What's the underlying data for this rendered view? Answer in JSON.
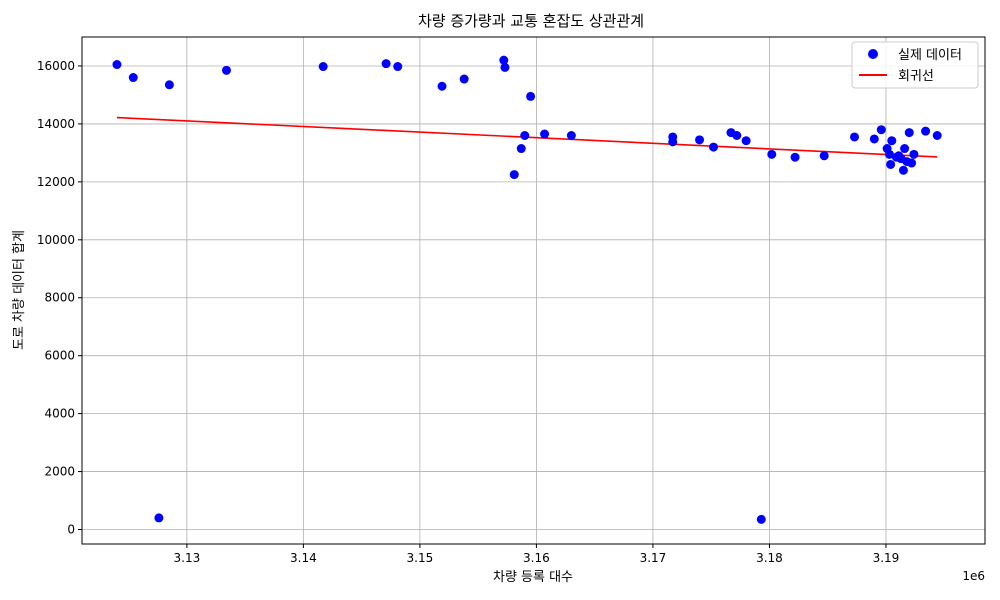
{
  "chart_data": {
    "type": "scatter",
    "title": "차량 증가량과 교통 혼잡도 상관관계",
    "xlabel": "차량 등록 대수",
    "ylabel": "도로 차량 데이터 합계",
    "x_offset_label": "1e6",
    "xlim": [
      3.121,
      3.1985
    ],
    "ylim": [
      -500,
      17000
    ],
    "x_ticks": [
      3.13,
      3.14,
      3.15,
      3.16,
      3.17,
      3.18,
      3.19
    ],
    "x_tick_labels": [
      "3.13",
      "3.14",
      "3.15",
      "3.16",
      "3.17",
      "3.18",
      "3.19"
    ],
    "y_ticks": [
      0,
      2000,
      4000,
      6000,
      8000,
      10000,
      12000,
      14000,
      16000
    ],
    "y_tick_labels": [
      "0",
      "2000",
      "4000",
      "6000",
      "8000",
      "10000",
      "12000",
      "14000",
      "16000"
    ],
    "grid": true,
    "legend_position": "top-right",
    "series": [
      {
        "name": "실제 데이터",
        "kind": "scatter",
        "color": "#0000ff",
        "points": [
          [
            3.124,
            16050
          ],
          [
            3.1254,
            15600
          ],
          [
            3.1276,
            400
          ],
          [
            3.1285,
            15350
          ],
          [
            3.1334,
            15850
          ],
          [
            3.1417,
            15980
          ],
          [
            3.1471,
            16080
          ],
          [
            3.1481,
            15980
          ],
          [
            3.1519,
            15300
          ],
          [
            3.1538,
            15550
          ],
          [
            3.1572,
            16200
          ],
          [
            3.1573,
            15950
          ],
          [
            3.1581,
            12250
          ],
          [
            3.1587,
            13150
          ],
          [
            3.159,
            13600
          ],
          [
            3.1595,
            14950
          ],
          [
            3.1607,
            13650
          ],
          [
            3.163,
            13600
          ],
          [
            3.1717,
            13550
          ],
          [
            3.1717,
            13380
          ],
          [
            3.174,
            13450
          ],
          [
            3.1752,
            13200
          ],
          [
            3.1767,
            13700
          ],
          [
            3.1772,
            13600
          ],
          [
            3.178,
            13420
          ],
          [
            3.1793,
            350
          ],
          [
            3.1802,
            12950
          ],
          [
            3.1822,
            12850
          ],
          [
            3.1847,
            12900
          ],
          [
            3.1873,
            13550
          ],
          [
            3.189,
            13480
          ],
          [
            3.1896,
            13800
          ],
          [
            3.1901,
            13150
          ],
          [
            3.1903,
            12950
          ],
          [
            3.1904,
            12600
          ],
          [
            3.1905,
            13420
          ],
          [
            3.1909,
            12850
          ],
          [
            3.1911,
            12900
          ],
          [
            3.1913,
            12800
          ],
          [
            3.1915,
            12400
          ],
          [
            3.1916,
            13150
          ],
          [
            3.1918,
            12700
          ],
          [
            3.192,
            13700
          ],
          [
            3.1922,
            12650
          ],
          [
            3.1924,
            12950
          ],
          [
            3.1934,
            13750
          ],
          [
            3.1944,
            13600
          ]
        ]
      },
      {
        "name": "회귀선",
        "kind": "line",
        "color": "#ff0000",
        "points": [
          [
            3.124,
            14220
          ],
          [
            3.1944,
            12860
          ]
        ]
      }
    ]
  }
}
